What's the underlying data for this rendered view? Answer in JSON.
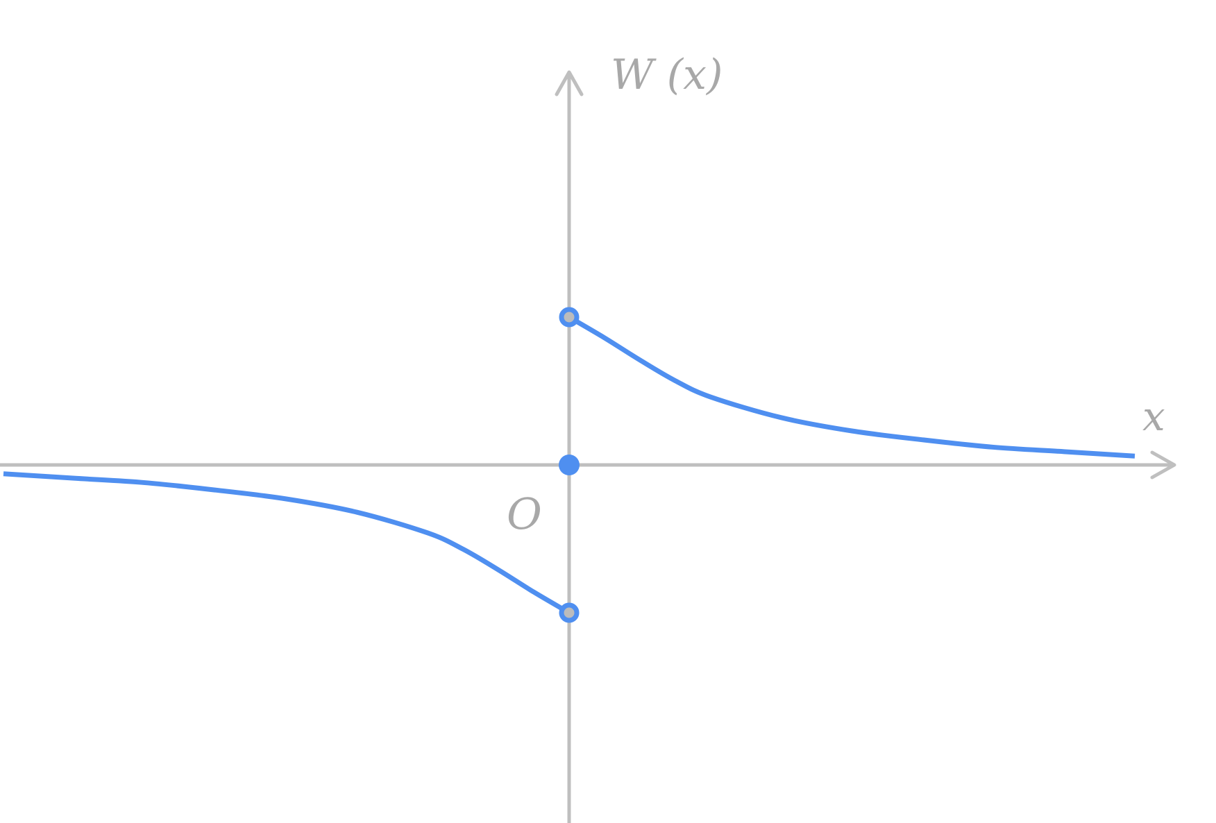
{
  "chart_data": {
    "type": "line",
    "title": "",
    "xlabel": "x",
    "ylabel": "W (x)",
    "origin_label": "O",
    "xlim": [
      -4,
      4
    ],
    "ylim": [
      -2.4,
      2.4
    ],
    "grid": false,
    "legend": "none",
    "series": [
      {
        "x": [
          -4,
          -3.5,
          -3,
          -2.5,
          -2,
          -1.5,
          -1,
          -0.75,
          -0.5,
          -0.25,
          0
        ],
        "y": [
          -0.06,
          -0.09,
          -0.12,
          -0.17,
          -0.23,
          -0.32,
          -0.46,
          -0.57,
          -0.71,
          -0.86,
          -1
        ]
      },
      {
        "x": [
          0,
          0.25,
          0.5,
          0.75,
          1,
          1.5,
          2,
          2.5,
          3,
          3.5,
          4
        ],
        "y": [
          1,
          0.86,
          0.71,
          0.57,
          0.46,
          0.32,
          0.23,
          0.17,
          0.12,
          0.09,
          0.06
        ]
      }
    ],
    "points": [
      {
        "x": 0,
        "y": 1,
        "style": "open"
      },
      {
        "x": 0,
        "y": -1,
        "style": "open"
      },
      {
        "x": 0,
        "y": 0,
        "style": "filled"
      }
    ],
    "colors": {
      "curve": "#4f8ff0",
      "axis": "#bfbfbf",
      "axis_label": "#a8a8a8",
      "open_point_fill": "#bcbcbc"
    }
  }
}
